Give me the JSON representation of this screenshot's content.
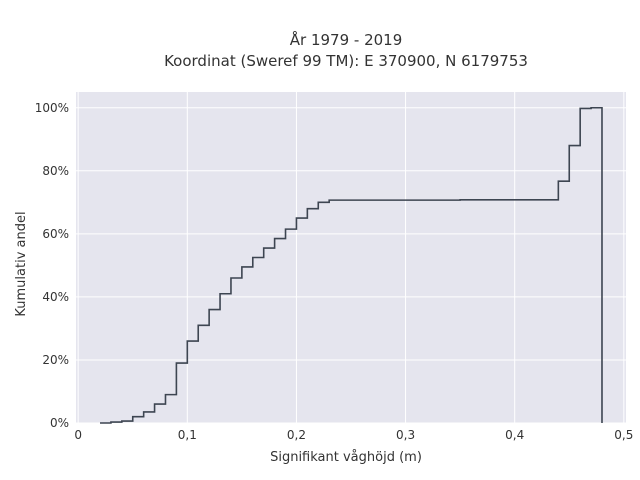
{
  "chart_data": {
    "type": "line",
    "line_shape": "step",
    "title_line1": "År 1979 - 2019",
    "title_line2": "Koordinat (Sweref 99 TM): E 370900, N 6179753",
    "xlabel": "Signifikant våghöjd (m)",
    "ylabel": "Kumulativ andel",
    "xlim": [
      -0.002,
      0.502
    ],
    "ylim": [
      0,
      1.05
    ],
    "xticks": [
      {
        "value": 0,
        "label": "0"
      },
      {
        "value": 0.1,
        "label": "0,1"
      },
      {
        "value": 0.2,
        "label": "0,2"
      },
      {
        "value": 0.3,
        "label": "0,3"
      },
      {
        "value": 0.4,
        "label": "0,4"
      },
      {
        "value": 0.5,
        "label": "0,5"
      }
    ],
    "yticks": [
      {
        "value": 0,
        "label": "0%"
      },
      {
        "value": 0.2,
        "label": "20%"
      },
      {
        "value": 0.4,
        "label": "40%"
      },
      {
        "value": 0.6,
        "label": "60%"
      },
      {
        "value": 0.8,
        "label": "80%"
      },
      {
        "value": 1.0,
        "label": "100%"
      }
    ],
    "grid": true,
    "background_color": "#e5e5ee",
    "line_color": "#3d4551",
    "series": [
      {
        "x": [
          0.02,
          0.03,
          0.04,
          0.05,
          0.06,
          0.07,
          0.08,
          0.09,
          0.1,
          0.11,
          0.12,
          0.13,
          0.14,
          0.15,
          0.16,
          0.17,
          0.18,
          0.19,
          0.2,
          0.21,
          0.22,
          0.23,
          0.35,
          0.44,
          0.45,
          0.46,
          0.47,
          0.48
        ],
        "y": [
          0.0,
          0.003,
          0.006,
          0.02,
          0.035,
          0.06,
          0.09,
          0.19,
          0.26,
          0.31,
          0.36,
          0.41,
          0.46,
          0.495,
          0.525,
          0.555,
          0.585,
          0.615,
          0.65,
          0.68,
          0.7,
          0.707,
          0.708,
          0.767,
          0.88,
          0.998,
          1.0,
          0.0
        ]
      }
    ]
  }
}
